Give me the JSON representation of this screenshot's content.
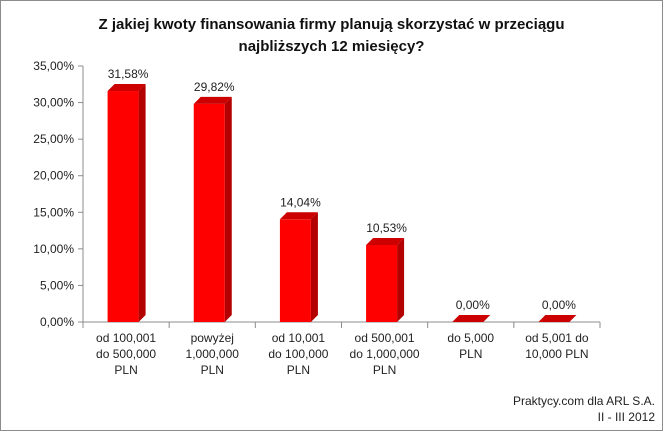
{
  "chart_data": {
    "type": "bar",
    "title_lines": [
      "Z jakiej kwoty finansowania firmy planują skorzystać w przeciągu",
      "najbliższych 12 miesięcy?"
    ],
    "categories": [
      [
        "od 100,001",
        "do 500,000",
        "PLN"
      ],
      [
        "powyżej",
        "1,000,000",
        "PLN"
      ],
      [
        "od 10,001",
        "do 100,000",
        "PLN"
      ],
      [
        "od 500,001",
        "do 1,000,000",
        "PLN"
      ],
      [
        "do 5,000",
        "PLN"
      ],
      [
        "od 5,001 do",
        "10,000 PLN"
      ]
    ],
    "values": [
      31.58,
      29.82,
      14.04,
      10.53,
      0.0,
      0.0
    ],
    "value_labels": [
      "31,58%",
      "29,82%",
      "14,04%",
      "10,53%",
      "0,00%",
      "0,00%"
    ],
    "ylim": [
      0,
      35
    ],
    "yticks": [
      0,
      5,
      10,
      15,
      20,
      25,
      30,
      35
    ],
    "ytick_labels": [
      "0,00%",
      "5,00%",
      "10,00%",
      "15,00%",
      "20,00%",
      "25,00%",
      "30,00%",
      "35,00%"
    ],
    "grid": false,
    "legend": "none",
    "bar_style": "3d",
    "colors": {
      "bar_front": "#ff0000",
      "bar_side": "#b30000",
      "bar_top": "#cc0000",
      "axis": "#8c8c8c"
    }
  },
  "footer": {
    "source": "Praktycy.com dla ARL S.A.",
    "date": "II - III 2012"
  }
}
